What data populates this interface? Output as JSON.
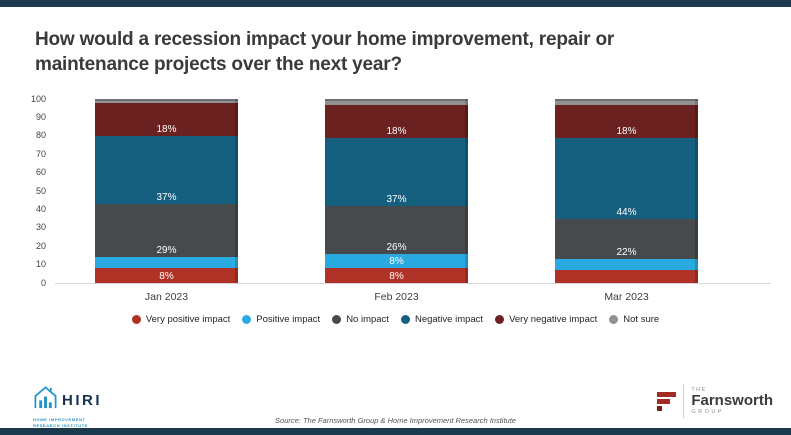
{
  "page": {
    "title": "How would a recession impact your home improvement, repair or maintenance projects over the next year?",
    "source": "Source: The Farnsworth Group & Home Improvement Research Institute",
    "accent_color": "#1b3a4d"
  },
  "chart_data": {
    "type": "bar",
    "stacked": true,
    "title": "How would a recession impact your home improvement, repair or maintenance projects over the next year?",
    "categories": [
      "Jan 2023",
      "Feb 2023",
      "Mar 2023"
    ],
    "series": [
      {
        "name": "Very positive impact",
        "color": "#b03226",
        "values": [
          8,
          8,
          7
        ],
        "labels": [
          "8%",
          "8%",
          ""
        ]
      },
      {
        "name": "Positive impact",
        "color": "#29abe2",
        "values": [
          6,
          8,
          6
        ],
        "labels": [
          "",
          "8%",
          ""
        ]
      },
      {
        "name": "No impact",
        "color": "#474a4c",
        "values": [
          29,
          26,
          22
        ],
        "labels": [
          "29%",
          "26%",
          "22%"
        ]
      },
      {
        "name": "Negative impact",
        "color": "#15607f",
        "values": [
          37,
          37,
          44
        ],
        "labels": [
          "37%",
          "37%",
          "44%"
        ]
      },
      {
        "name": "Very negative impact",
        "color": "#6b2120",
        "values": [
          18,
          18,
          18
        ],
        "labels": [
          "18%",
          "18%",
          "18%"
        ]
      },
      {
        "name": "Not sure",
        "color": "#909294",
        "border_top": "#6e7073",
        "values": [
          2,
          3,
          3
        ],
        "labels": [
          "",
          "",
          ""
        ]
      }
    ],
    "xlabel": "",
    "ylabel": "",
    "ylim": [
      0,
      100
    ],
    "yticks": [
      0,
      10,
      20,
      30,
      40,
      50,
      60,
      70,
      80,
      90,
      100
    ],
    "grid": false,
    "legend_position": "bottom",
    "value_suffix": "%"
  },
  "logos": {
    "hiri": {
      "name": "HIRI",
      "tagline_line1": "HOME IMPROVEMENT",
      "tagline_line2": "RESEARCH INSTITUTE"
    },
    "farnsworth": {
      "prefix": "THE",
      "name": "Farnsworth",
      "suffix": "GROUP"
    }
  }
}
